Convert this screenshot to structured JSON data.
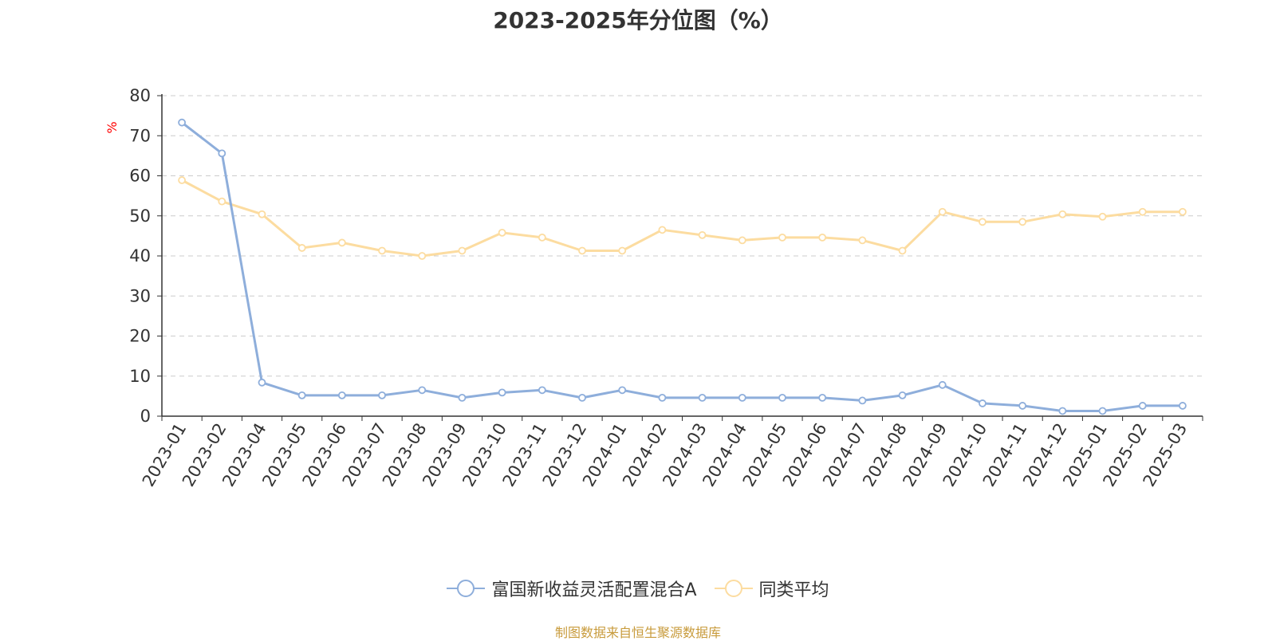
{
  "title": "2023-2025年分位图（%）",
  "source_note": "制图数据来自恒生聚源数据库",
  "colors": {
    "series1": "#8eaedb",
    "series2": "#fcdca0",
    "unit_label": "#ff0000",
    "grid": "#cccccc",
    "axis": "#333333",
    "source": "#c89b3c"
  },
  "chart_data": {
    "type": "line",
    "title": "2023-2025年分位图（%）",
    "ylabel": "%",
    "xlabel": "",
    "ylim": [
      0,
      80
    ],
    "yticks": [
      0,
      10,
      20,
      30,
      40,
      50,
      60,
      70,
      80
    ],
    "grid": true,
    "legend_position": "bottom-center",
    "categories": [
      "2023-01",
      "2023-02",
      "2023-04",
      "2023-05",
      "2023-06",
      "2023-07",
      "2023-08",
      "2023-09",
      "2023-10",
      "2023-11",
      "2023-12",
      "2024-01",
      "2024-02",
      "2024-03",
      "2024-04",
      "2024-05",
      "2024-06",
      "2024-07",
      "2024-08",
      "2024-09",
      "2024-10",
      "2024-11",
      "2024-12",
      "2025-01",
      "2025-02",
      "2025-03"
    ],
    "series": [
      {
        "name": "富国新收益灵活配置混合A",
        "values": [
          73.3,
          65.6,
          8.4,
          5.2,
          5.2,
          5.2,
          6.5,
          4.6,
          5.9,
          6.5,
          4.6,
          6.5,
          4.6,
          4.6,
          4.6,
          4.6,
          4.6,
          3.9,
          5.2,
          7.8,
          3.2,
          2.6,
          1.3,
          1.3,
          2.6,
          2.6
        ]
      },
      {
        "name": "同类平均",
        "values": [
          58.9,
          53.6,
          50.4,
          42.0,
          43.3,
          41.3,
          40.0,
          41.3,
          45.8,
          44.6,
          41.3,
          41.3,
          46.5,
          45.2,
          43.9,
          44.6,
          44.6,
          43.9,
          41.3,
          51.0,
          48.5,
          48.5,
          50.4,
          49.8,
          51.0,
          51.0
        ]
      }
    ]
  }
}
